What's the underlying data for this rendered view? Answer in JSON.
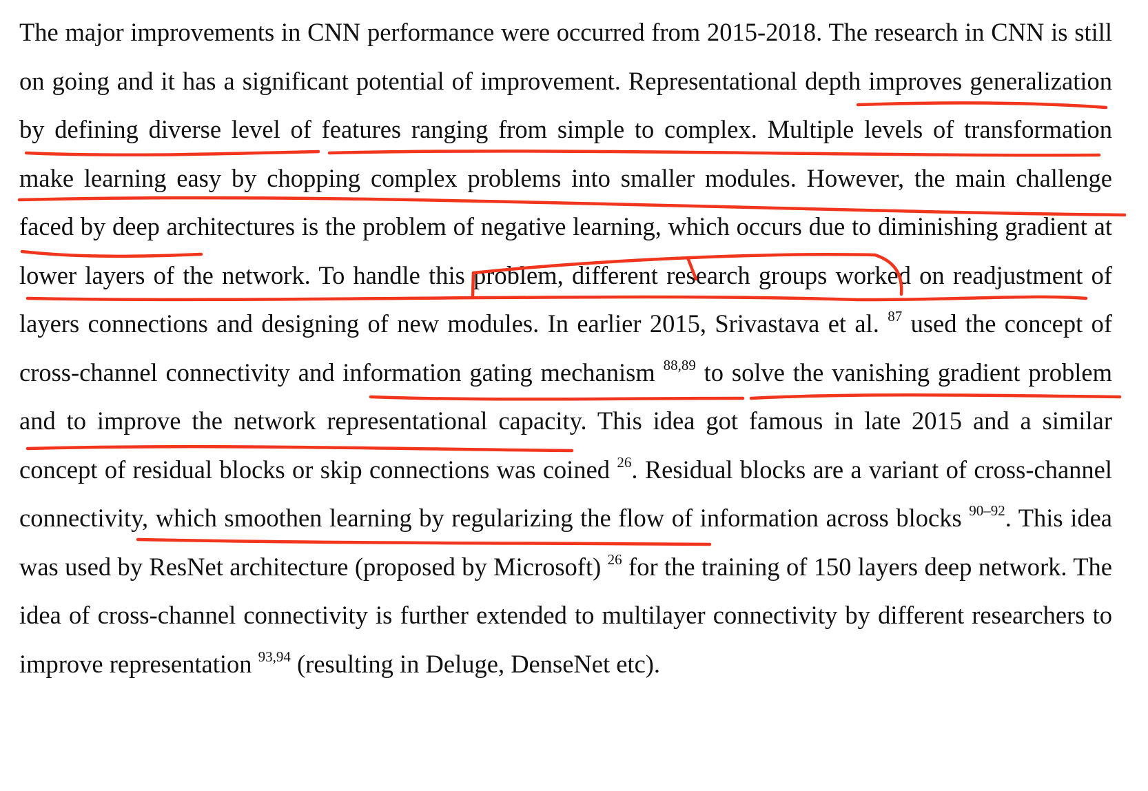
{
  "paragraph": {
    "s1": "The major improvements in CNN performance were occurred from 2015-2018. The research in CNN is still on going and it has a significant potential of improvement. ",
    "s2": "Representational depth improves generalization by defining diverse level of features ranging from simple to complex. Multiple levels of transformation make learning easy by chopping complex problems into smaller modules. However, the main challenge faced by deep architectures is the problem of negative learning, which occurs due to ",
    "s3": "diminishing gradient at lower layers",
    "s4": " of the network. To handle this problem, different research groups worked on readjustment of layers connections and designing of new modules. In earlier 2015, Srivastava et al. ",
    "cite1": "87",
    "s5": " used the concept of cross-channel connectivity and information gating mechanism ",
    "cite2": "88,89",
    "s6": " to solve the vanishing gradient problem and to improve the network representational capacity. This idea got famous in late 2015 and a similar concept of residual blocks or skip connections was coined ",
    "cite3": "26",
    "s7": ". Residual blocks are a variant of cross-channel connectivity, which smoothen learning by regularizing the flow of information across blocks ",
    "cite4": "90–92",
    "s8": ". This idea was used by ResNet architecture (proposed by Microsoft) ",
    "cite5": "26",
    "s9": " for the training of 150 layers deep network. The idea of cross-channel connectivity is further extended to multilayer connectivity by different researchers to improve representation ",
    "cite6": "93,94",
    "s10": " (resulting in Deluge, DenseNet etc)."
  },
  "annotation": {
    "color": "#f2361d",
    "kind": "hand-drawn red underlines"
  }
}
